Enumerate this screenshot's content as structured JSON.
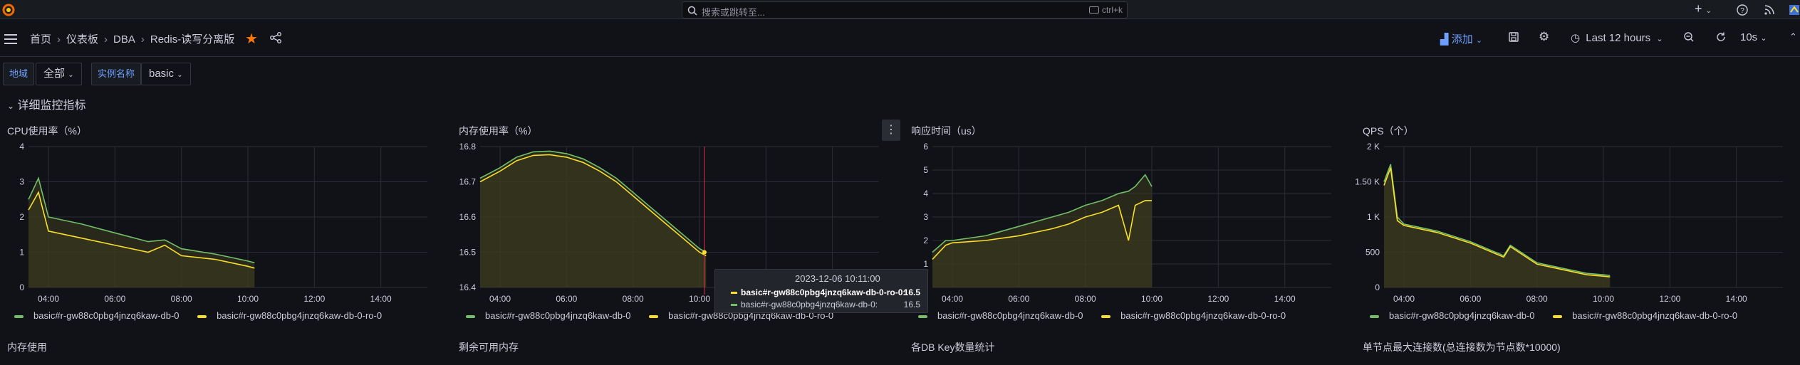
{
  "topbar": {
    "search_placeholder": "搜索或跳转至...",
    "search_shortcut": "ctrl+k",
    "add_plus": "+"
  },
  "breadcrumb": {
    "items": [
      "首页",
      "仪表板",
      "DBA",
      "Redis-读写分离版"
    ],
    "separator": "›"
  },
  "toolbar": {
    "add_label": "添加",
    "time_range": "Last 12 hours",
    "refresh_interval": "10s"
  },
  "variables": {
    "region_label": "地域",
    "region_value": "全部",
    "instance_label": "实例名称",
    "instance_value": "basic"
  },
  "row_title": "详细监控指标",
  "colors": {
    "series_green": "#73bf69",
    "series_yellow": "#fade2a",
    "fill": "#3c3d1f",
    "grid": "#2a2d33",
    "star": "#ff780a",
    "accent": "#6e9fff",
    "cursor": "#e02f44"
  },
  "panels": [
    {
      "title": "CPU使用率（%）",
      "legend": [
        "basic#r-gw88c0pbg4jnzq6kaw-db-0",
        "basic#r-gw88c0pbg4jnzq6kaw-db-0-ro-0"
      ],
      "chart_data": {
        "type": "line",
        "x_ticks": [
          "04:00",
          "06:00",
          "08:00",
          "10:00",
          "12:00",
          "14:00"
        ],
        "y_ticks": [
          "0",
          "1",
          "2",
          "3",
          "4"
        ],
        "ylim": [
          0,
          4
        ],
        "x_hours": [
          3.4,
          3.7,
          4.0,
          5.0,
          6.0,
          7.0,
          7.5,
          8.0,
          9.0,
          9.5,
          10.0,
          10.2
        ],
        "series": [
          {
            "name": "basic#r-gw88c0pbg4jnzq6kaw-db-0",
            "values": [
              2.5,
              3.1,
              2.0,
              1.8,
              1.55,
              1.3,
              1.35,
              1.1,
              0.95,
              0.85,
              0.75,
              0.7
            ]
          },
          {
            "name": "basic#r-gw88c0pbg4jnzq6kaw-db-0-ro-0",
            "values": [
              2.2,
              2.7,
              1.6,
              1.4,
              1.2,
              1.0,
              1.2,
              0.9,
              0.8,
              0.7,
              0.6,
              0.55
            ]
          }
        ]
      }
    },
    {
      "title": "内存使用率（%）",
      "legend": [
        "basic#r-gw88c0pbg4jnzq6kaw-db-0",
        "basic#r-gw88c0pbg4jnzq6kaw-db-0-ro-0"
      ],
      "chart_data": {
        "type": "line",
        "x_ticks": [
          "04:00",
          "06:00",
          "08:00",
          "10:00",
          "12:00",
          "14:00"
        ],
        "y_ticks": [
          "16.4",
          "16.5",
          "16.6",
          "16.7",
          "16.8"
        ],
        "ylim": [
          16.4,
          16.8
        ],
        "x_hours": [
          3.4,
          4.0,
          4.5,
          5.0,
          5.5,
          6.0,
          6.5,
          7.0,
          7.5,
          8.0,
          8.5,
          9.0,
          9.5,
          10.0,
          10.2
        ],
        "series": [
          {
            "name": "basic#r-gw88c0pbg4jnzq6kaw-db-0",
            "values": [
              16.71,
              16.74,
              16.77,
              16.785,
              16.787,
              16.78,
              16.765,
              16.74,
              16.71,
              16.67,
              16.63,
              16.59,
              16.55,
              16.51,
              16.5
            ]
          },
          {
            "name": "basic#r-gw88c0pbg4jnzq6kaw-db-0-ro-0",
            "values": [
              16.7,
              16.73,
              16.76,
              16.775,
              16.777,
              16.77,
              16.755,
              16.73,
              16.7,
              16.66,
              16.62,
              16.58,
              16.54,
              16.5,
              16.49
            ]
          }
        ]
      },
      "tooltip": {
        "time": "2023-12-06 10:11:00",
        "rows": [
          {
            "label": "basic#r-gw88c0pbg4jnzq6kaw-db-0-ro-0:",
            "value": "16.5"
          },
          {
            "label": "basic#r-gw88c0pbg4jnzq6kaw-db-0:",
            "value": "16.5"
          }
        ]
      }
    },
    {
      "title": "响应时间（us）",
      "legend": [
        "basic#r-gw88c0pbg4jnzq6kaw-db-0",
        "basic#r-gw88c0pbg4jnzq6kaw-db-0-ro-0"
      ],
      "chart_data": {
        "type": "line",
        "x_ticks": [
          "04:00",
          "06:00",
          "08:00",
          "10:00",
          "12:00",
          "14:00"
        ],
        "y_ticks": [
          "0",
          "1",
          "2",
          "3",
          "4",
          "5",
          "6"
        ],
        "ylim": [
          0,
          6
        ],
        "x_hours": [
          3.4,
          3.8,
          4.0,
          5.0,
          6.0,
          7.0,
          7.5,
          8.0,
          8.5,
          9.0,
          9.3,
          9.5,
          9.8,
          10.0
        ],
        "series": [
          {
            "name": "basic#r-gw88c0pbg4jnzq6kaw-db-0",
            "values": [
              1.5,
              2.0,
              2.0,
              2.2,
              2.6,
              3.0,
              3.2,
              3.5,
              3.7,
              4.0,
              4.1,
              4.3,
              4.8,
              4.3
            ]
          },
          {
            "name": "basic#r-gw88c0pbg4jnzq6kaw-db-0-ro-0",
            "values": [
              1.2,
              1.8,
              1.9,
              2.0,
              2.2,
              2.5,
              2.7,
              3.0,
              3.2,
              3.5,
              2.0,
              3.5,
              3.7,
              3.7
            ]
          }
        ]
      }
    },
    {
      "title": "QPS（个）",
      "legend": [
        "basic#r-gw88c0pbg4jnzq6kaw-db-0",
        "basic#r-gw88c0pbg4jnzq6kaw-db-0-ro-0"
      ],
      "chart_data": {
        "type": "line",
        "x_ticks": [
          "04:00",
          "06:00",
          "08:00",
          "10:00",
          "12:00",
          "14:00"
        ],
        "y_ticks": [
          "0",
          "500",
          "1 K",
          "1.50 K",
          "2 K"
        ],
        "ylim": [
          0,
          2000
        ],
        "x_hours": [
          3.4,
          3.6,
          3.8,
          4.0,
          5.0,
          6.0,
          7.0,
          7.2,
          8.0,
          9.0,
          9.5,
          10.0,
          10.2
        ],
        "series": [
          {
            "name": "basic#r-gw88c0pbg4jnzq6kaw-db-0",
            "values": [
              1500,
              1750,
              1000,
              900,
              800,
              650,
              450,
              600,
              350,
              250,
              200,
              180,
              170
            ]
          },
          {
            "name": "basic#r-gw88c0pbg4jnzq6kaw-db-0-ro-0",
            "values": [
              1450,
              1700,
              950,
              880,
              780,
              630,
              430,
              580,
              330,
              230,
              180,
              160,
              150
            ]
          }
        ]
      }
    }
  ],
  "bottom_titles": [
    "内存使用",
    "剩余可用内存",
    "各DB Key数量统计",
    "单节点最大连接数(总连接数为节点数*10000)"
  ]
}
